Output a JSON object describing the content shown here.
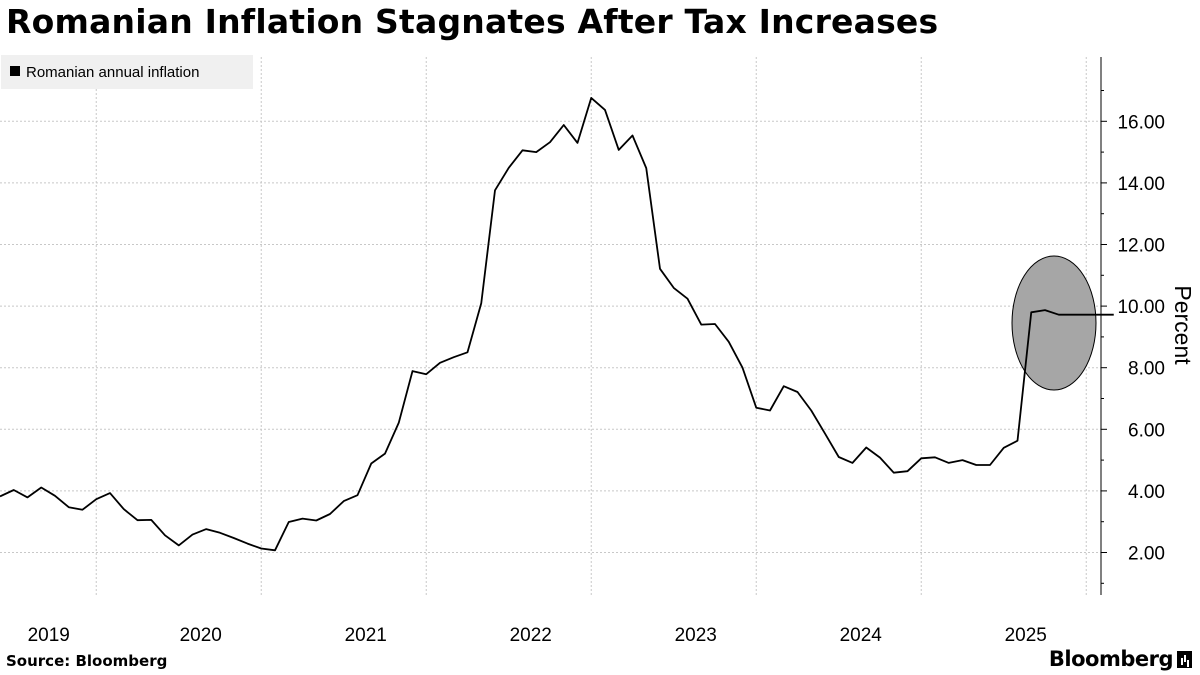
{
  "header": {
    "title": "Romanian Inflation Stagnates After Tax Increases"
  },
  "footer": {
    "source": "Source: Bloomberg",
    "brand": "Bloomberg"
  },
  "colors": {
    "line": "#000000",
    "grid": "#c8c8c8",
    "highlight_fill": "#a6a6a6",
    "legend_bg": "#f0f0f0"
  },
  "chart_data": {
    "type": "line",
    "title": "Romanian Inflation Stagnates After Tax Increases",
    "ylabel": "Percent",
    "xlabel": "",
    "ylim": [
      0.7,
      18
    ],
    "y_ticks": [
      "2.00",
      "4.00",
      "6.00",
      "8.00",
      "10.00",
      "12.00",
      "14.00",
      "16.00"
    ],
    "x_ticks": [
      "2019",
      "2020",
      "2021",
      "2022",
      "2023",
      "2024",
      "2025"
    ],
    "legend": {
      "position": "top-left",
      "entries": [
        "Romanian annual inflation"
      ]
    },
    "grid": true,
    "highlight": {
      "shape": "ellipse",
      "period": "2025 Jul–Oct"
    },
    "series": [
      {
        "name": "Romanian annual inflation",
        "x": [
          "2019-01",
          "2019-02",
          "2019-03",
          "2019-04",
          "2019-05",
          "2019-06",
          "2019-07",
          "2019-08",
          "2019-09",
          "2019-10",
          "2019-11",
          "2019-12",
          "2020-01",
          "2020-02",
          "2020-03",
          "2020-04",
          "2020-05",
          "2020-06",
          "2020-07",
          "2020-08",
          "2020-09",
          "2020-10",
          "2020-11",
          "2020-12",
          "2021-01",
          "2021-02",
          "2021-03",
          "2021-04",
          "2021-05",
          "2021-06",
          "2021-07",
          "2021-08",
          "2021-09",
          "2021-10",
          "2021-11",
          "2021-12",
          "2022-01",
          "2022-02",
          "2022-03",
          "2022-04",
          "2022-05",
          "2022-06",
          "2022-07",
          "2022-08",
          "2022-09",
          "2022-10",
          "2022-11",
          "2022-12",
          "2023-01",
          "2023-02",
          "2023-03",
          "2023-04",
          "2023-05",
          "2023-06",
          "2023-07",
          "2023-08",
          "2023-09",
          "2023-10",
          "2023-11",
          "2023-12",
          "2024-01",
          "2024-02",
          "2024-03",
          "2024-04",
          "2024-05",
          "2024-06",
          "2024-07",
          "2024-08",
          "2024-09",
          "2024-10",
          "2024-11",
          "2024-12",
          "2025-01",
          "2025-02",
          "2025-03",
          "2025-04",
          "2025-05",
          "2025-06",
          "2025-07",
          "2025-08",
          "2025-09",
          "2025-10"
        ],
        "values": [
          3.82,
          4.03,
          3.79,
          4.11,
          3.84,
          3.47,
          3.39,
          3.73,
          3.93,
          3.41,
          3.05,
          3.06,
          2.56,
          2.23,
          2.58,
          2.76,
          2.64,
          2.47,
          2.29,
          2.13,
          2.07,
          2.99,
          3.1,
          3.04,
          3.25,
          3.67,
          3.86,
          4.89,
          5.21,
          6.21,
          7.89,
          7.79,
          8.16,
          8.34,
          8.5,
          10.09,
          13.76,
          14.49,
          15.06,
          15.0,
          15.32,
          15.88,
          15.3,
          16.76,
          16.37,
          15.07,
          15.54,
          14.48,
          11.21,
          10.59,
          10.24,
          9.4,
          9.42,
          8.84,
          8.0,
          6.7,
          6.61,
          7.4,
          7.21,
          6.61,
          5.86,
          5.1,
          4.91,
          5.41,
          5.08,
          4.59,
          4.64,
          5.06,
          5.09,
          4.91,
          5.0,
          4.84,
          4.84,
          5.4,
          5.63,
          9.8,
          9.87,
          9.72,
          9.72,
          9.72,
          9.72,
          9.72
        ]
      }
    ]
  }
}
